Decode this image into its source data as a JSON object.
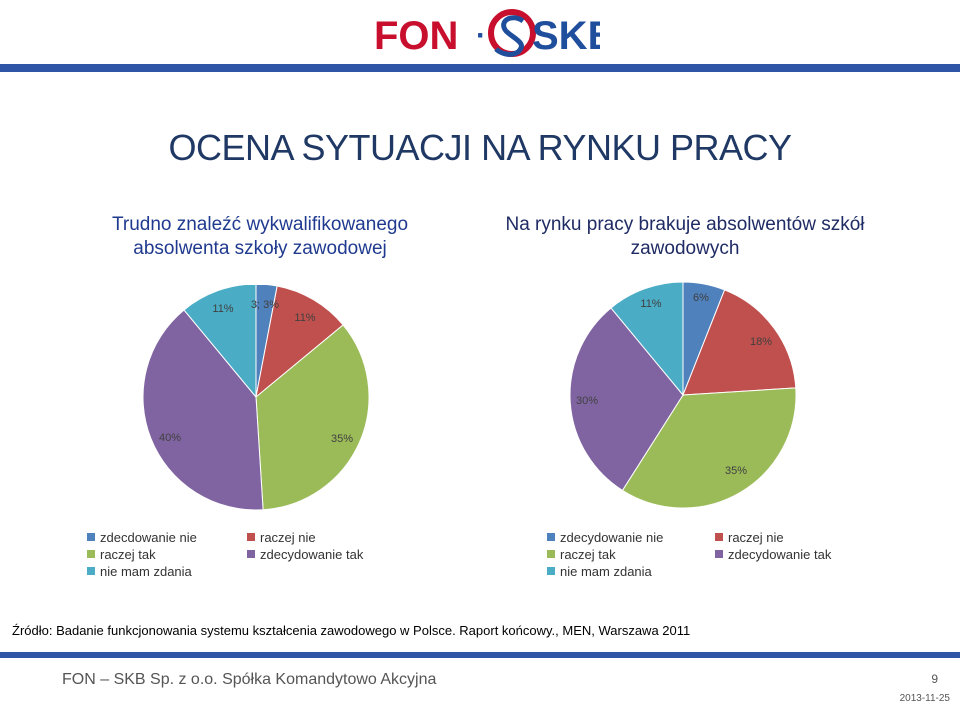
{
  "logo": {
    "left_text": "FON",
    "right_text": "SKB",
    "separator": "·"
  },
  "title": "OCENA SYTUACJI NA RYNKU PRACY",
  "colors": {
    "navy": "#1f3864",
    "band": "#2f56a6",
    "logo_red": "#c8102e",
    "logo_blue": "#1f4e9c"
  },
  "chart_data": [
    {
      "type": "pie",
      "title": "Trudno znaleźć wykwalifikowanego absolwenta szkoły zawodowej",
      "categories": [
        "zdecdowanie nie",
        "raczej nie",
        "raczej tak",
        "zdecydowanie tak",
        "nie mam zdania"
      ],
      "values": [
        3,
        11,
        35,
        40,
        11
      ],
      "data_labels": [
        "3; 3%",
        "11%",
        "35%",
        "40%",
        "11%"
      ],
      "colors": [
        "#4f81bd",
        "#c0504d",
        "#9bbb59",
        "#8064a2",
        "#4bacc6"
      ],
      "legend": [
        "zdecdowanie nie",
        "raczej nie",
        "raczej tak",
        "zdecydowanie tak",
        "nie mam zdania"
      ],
      "legend_position": "bottom"
    },
    {
      "type": "pie",
      "title": "Na rynku pracy brakuje absolwentów szkół zawodowych",
      "categories": [
        "zdecydowanie nie",
        "raczej nie",
        "raczej tak",
        "zdecydowanie tak",
        "nie mam zdania"
      ],
      "values": [
        6,
        18,
        35,
        30,
        11
      ],
      "data_labels": [
        "6%",
        "18%",
        "35%",
        "30%",
        "11%"
      ],
      "colors": [
        "#4f81bd",
        "#c0504d",
        "#9bbb59",
        "#8064a2",
        "#4bacc6"
      ],
      "legend": [
        "zdecydowanie nie",
        "raczej nie",
        "raczej tak",
        "zdecydowanie tak",
        "nie mam zdania"
      ],
      "legend_position": "bottom"
    }
  ],
  "source": "Źródło: Badanie funkcjonowania systemu kształcenia zawodowego w Polsce. Raport końcowy., MEN, Warszawa  2011",
  "footer": {
    "company": "FON – SKB Sp. z o.o. Spółka Komandytowo Akcyjna",
    "page_number": "9",
    "date": "2013-11-25"
  }
}
